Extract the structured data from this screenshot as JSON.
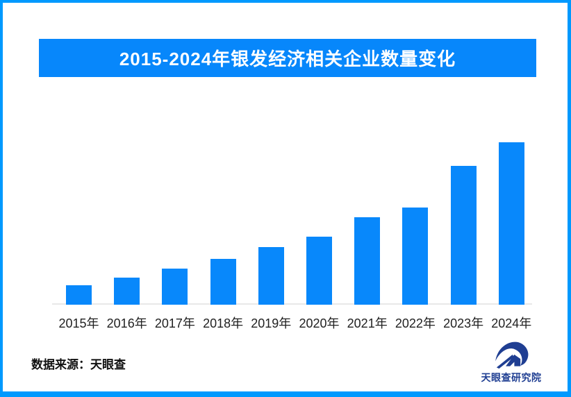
{
  "page": {
    "border_color": "#0099FE",
    "background_color": "#FFFFFF"
  },
  "header": {
    "title": "2015-2024年银发经济相关企业数量变化",
    "banner_color": "#0787FB",
    "title_color": "#FFFFFF"
  },
  "chart_data": {
    "type": "bar",
    "title": "2015-2024年银发经济相关企业数量变化",
    "categories": [
      "2015年",
      "2016年",
      "2017年",
      "2018年",
      "2019年",
      "2020年",
      "2021年",
      "2022年",
      "2023年",
      "2024年"
    ],
    "values": [
      28,
      39,
      52,
      66,
      83,
      98,
      126,
      140,
      200,
      234
    ],
    "note": "Chart shows no value axis or data labels; values are relative bar heights estimated from pixels (max bar = 234).",
    "xlabel": "",
    "ylabel": "",
    "ylim": [
      0,
      240
    ],
    "gridlines": false,
    "legend": "none",
    "bar_color": "#0888FB",
    "axis_line_color": "#E8E8E8",
    "tick_label_color": "#212121"
  },
  "footer": {
    "source_label": "数据来源：天眼查",
    "logo_text": "天眼查研究院",
    "logo_color": "#1F3E92"
  }
}
